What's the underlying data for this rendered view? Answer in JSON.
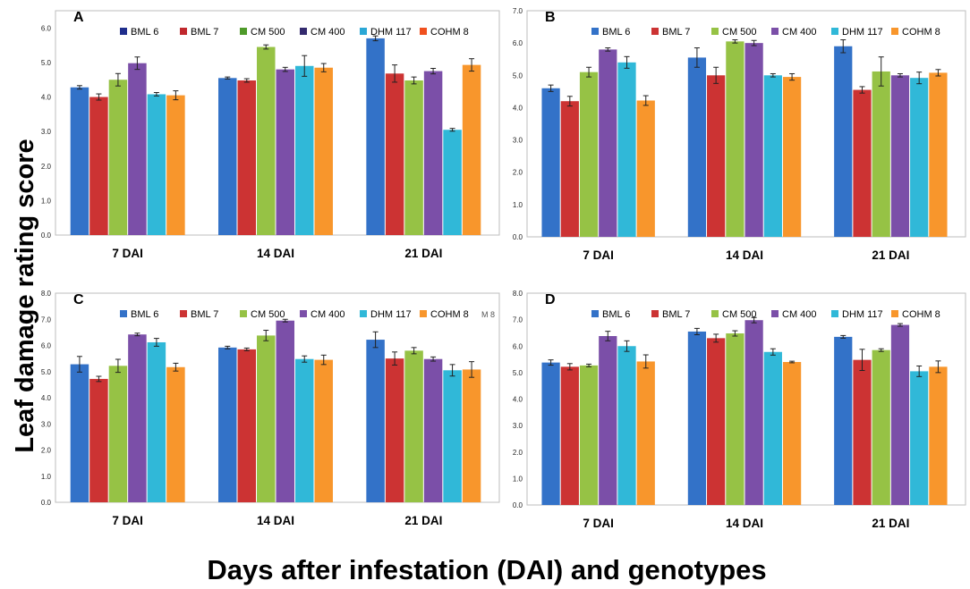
{
  "figure": {
    "ylabel": "Leaf damage rating score",
    "xlabel": "Days after infestation (DAI) and genotypes"
  },
  "chart_data": [
    {
      "panel": "A",
      "type": "bar",
      "categories": [
        "7 DAI",
        "14 DAI",
        "21 DAI"
      ],
      "ylim": [
        0,
        6.5
      ],
      "yticks": [
        "0.0",
        "1.0",
        "2.0",
        "3.0",
        "4.0",
        "5.0",
        "6.0"
      ],
      "legend_colors": [
        "#1f2e8c",
        "#c0282d",
        "#4e9a2a",
        "#332a6e",
        "#2aa7d6",
        "#f0501e"
      ],
      "legend_extra": "",
      "series": [
        {
          "name": "BML 6",
          "color": "#3372c8",
          "values": [
            4.28,
            4.55,
            5.7
          ],
          "errors": [
            0.05,
            0.03,
            0.07
          ]
        },
        {
          "name": "BML 7",
          "color": "#cc3333",
          "values": [
            4.0,
            4.48,
            4.68
          ],
          "errors": [
            0.09,
            0.05,
            0.25
          ]
        },
        {
          "name": "CM 500",
          "color": "#96c245",
          "values": [
            4.5,
            5.45,
            4.48
          ],
          "errors": [
            0.18,
            0.06,
            0.1
          ]
        },
        {
          "name": "CM 400",
          "color": "#7b4fa8",
          "values": [
            4.98,
            4.8,
            4.75
          ],
          "errors": [
            0.18,
            0.06,
            0.08
          ]
        },
        {
          "name": "DHM 117",
          "color": "#30b8d8",
          "values": [
            4.08,
            4.9,
            3.05
          ],
          "errors": [
            0.05,
            0.3,
            0.04
          ]
        },
        {
          "name": "COHM 8",
          "color": "#f8962c",
          "values": [
            4.05,
            4.85,
            4.93
          ],
          "errors": [
            0.13,
            0.12,
            0.18
          ]
        }
      ]
    },
    {
      "panel": "B",
      "type": "bar",
      "categories": [
        "7 DAI",
        "14 DAI",
        "21 DAI"
      ],
      "ylim": [
        0,
        7.0
      ],
      "yticks": [
        "0.0",
        "1.0",
        "2.0",
        "3.0",
        "4.0",
        "5.0",
        "6.0",
        "7.0"
      ],
      "legend_colors": [
        "#3372c8",
        "#cc3333",
        "#96c245",
        "#7b4fa8",
        "#30b8d8",
        "#f8962c"
      ],
      "legend_extra": "",
      "series": [
        {
          "name": "BML 6",
          "color": "#3372c8",
          "values": [
            4.6,
            5.55,
            5.9
          ],
          "errors": [
            0.1,
            0.3,
            0.2
          ]
        },
        {
          "name": "BML 7",
          "color": "#cc3333",
          "values": [
            4.2,
            5.0,
            4.55
          ],
          "errors": [
            0.15,
            0.25,
            0.1
          ]
        },
        {
          "name": "CM 500",
          "color": "#96c245",
          "values": [
            5.1,
            6.05,
            5.12
          ],
          "errors": [
            0.15,
            0.05,
            0.45
          ]
        },
        {
          "name": "CM 400",
          "color": "#7b4fa8",
          "values": [
            5.8,
            6.0,
            5.0
          ],
          "errors": [
            0.05,
            0.08,
            0.05
          ]
        },
        {
          "name": "DHM 117",
          "color": "#30b8d8",
          "values": [
            5.4,
            5.0,
            4.92
          ],
          "errors": [
            0.18,
            0.05,
            0.18
          ]
        },
        {
          "name": "COHM 8",
          "color": "#f8962c",
          "values": [
            4.22,
            4.95,
            5.08
          ],
          "errors": [
            0.15,
            0.1,
            0.1
          ]
        }
      ]
    },
    {
      "panel": "C",
      "type": "bar",
      "categories": [
        "7 DAI",
        "14 DAI",
        "21 DAI"
      ],
      "ylim": [
        0,
        8.0
      ],
      "yticks": [
        "0.0",
        "1.0",
        "2.0",
        "3.0",
        "4.0",
        "5.0",
        "6.0",
        "7.0",
        "8.0"
      ],
      "legend_colors": [
        "#3372c8",
        "#cc3333",
        "#96c245",
        "#7b4fa8",
        "#30b8d8",
        "#f8962c"
      ],
      "legend_extra": "M 8",
      "series": [
        {
          "name": "BML 6",
          "color": "#3372c8",
          "values": [
            5.28,
            5.92,
            6.22
          ],
          "errors": [
            0.3,
            0.05,
            0.3
          ]
        },
        {
          "name": "BML 7",
          "color": "#cc3333",
          "values": [
            4.72,
            5.85,
            5.5
          ],
          "errors": [
            0.1,
            0.05,
            0.25
          ]
        },
        {
          "name": "CM 500",
          "color": "#96c245",
          "values": [
            5.22,
            6.38,
            5.8
          ],
          "errors": [
            0.25,
            0.2,
            0.12
          ]
        },
        {
          "name": "CM 400",
          "color": "#7b4fa8",
          "values": [
            6.42,
            6.95,
            5.48
          ],
          "errors": [
            0.05,
            0.05,
            0.08
          ]
        },
        {
          "name": "DHM 117",
          "color": "#30b8d8",
          "values": [
            6.12,
            5.48,
            5.05
          ],
          "errors": [
            0.15,
            0.12,
            0.22
          ]
        },
        {
          "name": "COHM 8",
          "color": "#f8962c",
          "values": [
            5.17,
            5.45,
            5.08
          ],
          "errors": [
            0.15,
            0.18,
            0.3
          ]
        }
      ]
    },
    {
      "panel": "D",
      "type": "bar",
      "categories": [
        "7 DAI",
        "14 DAI",
        "21 DAI"
      ],
      "ylim": [
        0,
        8.0
      ],
      "yticks": [
        "0.0",
        "1.0",
        "2.0",
        "3.0",
        "4.0",
        "5.0",
        "6.0",
        "7.0",
        "8.0"
      ],
      "legend_colors": [
        "#3372c8",
        "#cc3333",
        "#96c245",
        "#7b4fa8",
        "#30b8d8",
        "#f8962c"
      ],
      "legend_extra": "",
      "series": [
        {
          "name": "BML 6",
          "color": "#3372c8",
          "values": [
            5.38,
            6.55,
            6.35
          ],
          "errors": [
            0.1,
            0.12,
            0.05
          ]
        },
        {
          "name": "BML 7",
          "color": "#cc3333",
          "values": [
            5.22,
            6.3,
            5.48
          ],
          "errors": [
            0.12,
            0.15,
            0.4
          ]
        },
        {
          "name": "CM 500",
          "color": "#96c245",
          "values": [
            5.27,
            6.48,
            5.85
          ],
          "errors": [
            0.05,
            0.1,
            0.05
          ]
        },
        {
          "name": "CM 400",
          "color": "#7b4fa8",
          "values": [
            6.38,
            6.98,
            6.8
          ],
          "errors": [
            0.18,
            0.1,
            0.05
          ]
        },
        {
          "name": "DHM 117",
          "color": "#30b8d8",
          "values": [
            6.0,
            5.78,
            5.05
          ],
          "errors": [
            0.2,
            0.12,
            0.2
          ]
        },
        {
          "name": "COHM 8",
          "color": "#f8962c",
          "values": [
            5.42,
            5.4,
            5.22
          ],
          "errors": [
            0.25,
            0.03,
            0.22
          ]
        }
      ]
    }
  ]
}
